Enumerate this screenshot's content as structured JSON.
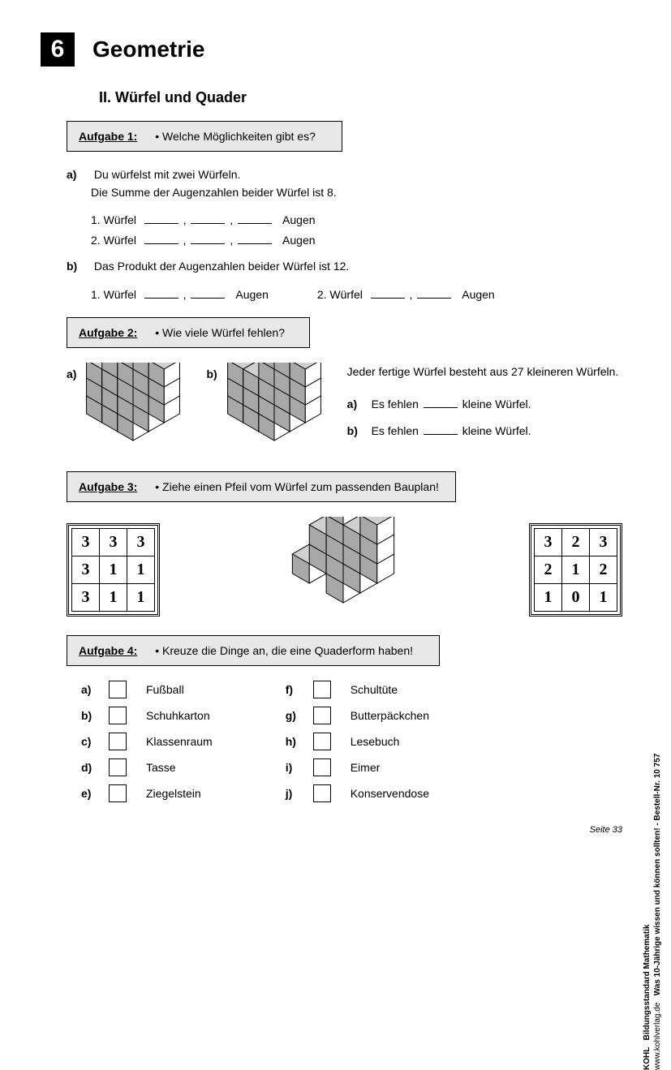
{
  "colors": {
    "bg": "#ffffff",
    "text": "#000000",
    "box_fill": "#e8e8e8",
    "cube_light": "#ffffff",
    "cube_mid": "#d0d0d0",
    "cube_dark": "#a8a8a8"
  },
  "chapter": {
    "num": "6",
    "title": "Geometrie"
  },
  "section": "II.  Würfel und Quader",
  "task1": {
    "label": "Aufgabe 1:",
    "bullet": "• Welche Möglichkeiten gibt es?",
    "a": {
      "letter": "a)",
      "line1": "Du würfelst mit zwei Würfeln.",
      "line2": "Die Summe der Augenzahlen beider Würfel ist 8.",
      "d1_pre": "1. Würfel",
      "d1_suf": "Augen",
      "d2_pre": "2. Würfel",
      "d2_suf": "Augen"
    },
    "b": {
      "letter": "b)",
      "line1": "Das Produkt der Augenzahlen beider Würfel ist 12.",
      "d1_pre": "1. Würfel",
      "d1_suf": "Augen",
      "d2_pre": "2. Würfel",
      "d2_suf": "Augen"
    }
  },
  "task2": {
    "label": "Aufgabe 2:",
    "bullet": "• Wie viele Würfel fehlen?",
    "a_label": "a)",
    "b_label": "b)",
    "intro": "Jeder fertige Würfel besteht aus 27 kleineren Würfeln.",
    "ans_a_pre": "Es fehlen",
    "ans_a_suf": "kleine Würfel.",
    "ans_b_pre": "Es fehlen",
    "ans_b_suf": "kleine Würfel.",
    "ans_a_letter": "a)",
    "ans_b_letter": "b)"
  },
  "task3": {
    "label": "Aufgabe 3:",
    "bullet": "• Ziehe einen Pfeil vom Würfel zum passenden Bauplan!",
    "plan_left": [
      [
        3,
        3,
        3
      ],
      [
        3,
        1,
        1
      ],
      [
        3,
        1,
        1
      ]
    ],
    "plan_right": [
      [
        3,
        2,
        3
      ],
      [
        2,
        1,
        2
      ],
      [
        1,
        0,
        1
      ]
    ]
  },
  "task4": {
    "label": "Aufgabe 4:",
    "bullet": "• Kreuze die Dinge an, die eine Quaderform haben!",
    "left": [
      {
        "l": "a)",
        "t": "Fußball"
      },
      {
        "l": "b)",
        "t": "Schuhkarton"
      },
      {
        "l": "c)",
        "t": "Klassenraum"
      },
      {
        "l": "d)",
        "t": "Tasse"
      },
      {
        "l": "e)",
        "t": "Ziegelstein"
      }
    ],
    "right": [
      {
        "l": "f)",
        "t": "Schultüte"
      },
      {
        "l": "g)",
        "t": "Butterpäckchen"
      },
      {
        "l": "h)",
        "t": "Lesebuch"
      },
      {
        "l": "i)",
        "t": "Eimer"
      },
      {
        "l": "j)",
        "t": "Konservendose"
      }
    ]
  },
  "page_num": "Seite 33",
  "side": {
    "line1": "Bildungsstandard Mathematik",
    "line2": "Was 10-Jährige wissen und können sollten!   -   Bestell-Nr. 10 757",
    "publisher": "KOHL",
    "url": "www.kohlverlag.de"
  }
}
